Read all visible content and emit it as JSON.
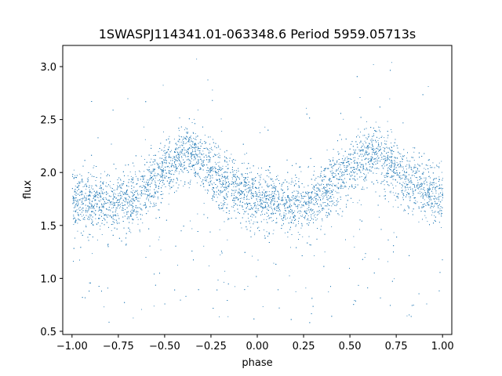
{
  "chart_data": {
    "type": "scatter",
    "title": "1SWASPJ114341.01-063348.6 Period 5959.05713s",
    "xlabel": "phase",
    "ylabel": "flux",
    "xlim": [
      -1.05,
      1.05
    ],
    "ylim": [
      0.47,
      3.2
    ],
    "xticks": [
      -1.0,
      -0.75,
      -0.5,
      -0.25,
      0.0,
      0.25,
      0.5,
      0.75,
      1.0
    ],
    "xtick_labels": [
      "−1.00",
      "−0.75",
      "−0.50",
      "−0.25",
      "0.00",
      "0.25",
      "0.50",
      "0.75",
      "1.00"
    ],
    "yticks": [
      0.5,
      1.0,
      1.5,
      2.0,
      2.5,
      3.0
    ],
    "ytick_labels": [
      "0.5",
      "1.0",
      "1.5",
      "2.0",
      "2.5",
      "3.0"
    ],
    "grid": false,
    "marker_color": "#1f77b4",
    "series": [
      {
        "phase_range": [
          -1.0,
          1.0
        ],
        "point_count": 9000,
        "trend": [
          {
            "x": -1.0,
            "y": 1.75
          },
          {
            "x": -0.9,
            "y": 1.72
          },
          {
            "x": -0.8,
            "y": 1.7
          },
          {
            "x": -0.7,
            "y": 1.74
          },
          {
            "x": -0.6,
            "y": 1.85
          },
          {
            "x": -0.5,
            "y": 2.02
          },
          {
            "x": -0.4,
            "y": 2.17
          },
          {
            "x": -0.35,
            "y": 2.18
          },
          {
            "x": -0.3,
            "y": 2.1
          },
          {
            "x": -0.2,
            "y": 1.93
          },
          {
            "x": -0.1,
            "y": 1.83
          },
          {
            "x": 0.0,
            "y": 1.76
          },
          {
            "x": 0.1,
            "y": 1.71
          },
          {
            "x": 0.2,
            "y": 1.69
          },
          {
            "x": 0.3,
            "y": 1.74
          },
          {
            "x": 0.4,
            "y": 1.86
          },
          {
            "x": 0.5,
            "y": 2.04
          },
          {
            "x": 0.6,
            "y": 2.17
          },
          {
            "x": 0.65,
            "y": 2.18
          },
          {
            "x": 0.7,
            "y": 2.1
          },
          {
            "x": 0.8,
            "y": 1.93
          },
          {
            "x": 0.9,
            "y": 1.83
          },
          {
            "x": 1.0,
            "y": 1.77
          }
        ],
        "scatter_sigma": 0.14
      }
    ]
  }
}
